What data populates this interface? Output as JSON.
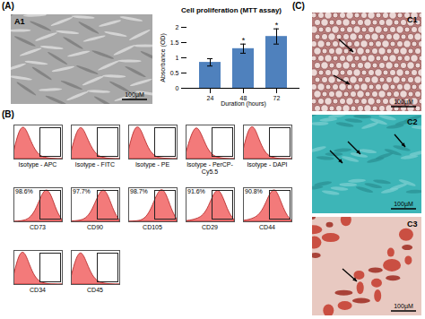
{
  "figure": {
    "panels": {
      "A": {
        "label": "(A)",
        "A1": {
          "label": "A1",
          "scale_bar": "100µM"
        }
      },
      "B": {
        "label": "(B)",
        "histograms": {
          "ylim": [
            0,
            100
          ],
          "tick_labels": false,
          "color": "#f26b6b",
          "rows": [
            [
              {
                "name": "Isotype - APC",
                "values": [
                  20,
                  85,
                  100,
                  60,
                  25,
                  8,
                  3,
                  1,
                  0,
                  0
                ]
              },
              {
                "name": "Isotype - FITC",
                "values": [
                  18,
                  80,
                  100,
                  62,
                  28,
                  9,
                  3,
                  1,
                  0,
                  0
                ]
              },
              {
                "name": "Isotype - PE",
                "values": [
                  22,
                  88,
                  100,
                  58,
                  22,
                  7,
                  2,
                  1,
                  0,
                  0
                ]
              },
              {
                "name": "Isotype - PerCP-Cy5.5",
                "values": [
                  15,
                  70,
                  100,
                  70,
                  30,
                  10,
                  4,
                  1,
                  0,
                  0
                ]
              },
              {
                "name": "Isotype - DAPI",
                "values": [
                  25,
                  90,
                  100,
                  55,
                  20,
                  6,
                  2,
                  0,
                  0,
                  0
                ]
              }
            ],
            [
              {
                "name": "CD73",
                "gate_label": "98.6%",
                "values": [
                  0,
                  1,
                  3,
                  10,
                  30,
                  70,
                  100,
                  80,
                  30,
                  5
                ]
              },
              {
                "name": "CD90",
                "gate_label": "97.7%",
                "values": [
                  1,
                  2,
                  4,
                  12,
                  35,
                  75,
                  100,
                  75,
                  28,
                  4
                ]
              },
              {
                "name": "CD105",
                "gate_label": "98.7%",
                "values": [
                  0,
                  1,
                  2,
                  8,
                  28,
                  68,
                  100,
                  85,
                  35,
                  6
                ]
              },
              {
                "name": "CD29",
                "gate_label": "91.6%",
                "values": [
                  2,
                  4,
                  8,
                  15,
                  35,
                  75,
                  100,
                  70,
                  25,
                  5
                ]
              },
              {
                "name": "CD44",
                "gate_label": "90.8%",
                "values": [
                  3,
                  5,
                  10,
                  20,
                  45,
                  85,
                  100,
                  60,
                  20,
                  3
                ]
              }
            ],
            [
              {
                "name": "CD34",
                "values": [
                  25,
                  90,
                  100,
                  55,
                  20,
                  6,
                  2,
                  0,
                  0,
                  0
                ]
              },
              {
                "name": "CD45",
                "values": [
                  20,
                  82,
                  100,
                  60,
                  24,
                  8,
                  3,
                  1,
                  0,
                  0
                ]
              }
            ]
          ]
        }
      },
      "C": {
        "label": "(C)",
        "images": [
          {
            "label": "C1",
            "scale_bar": "100µM"
          },
          {
            "label": "C2",
            "scale_bar": "100µM"
          },
          {
            "label": "C3",
            "scale_bar": "100µM"
          }
        ]
      }
    }
  },
  "chart_data": {
    "type": "bar",
    "title": "Cell proliferation (MTT assay)",
    "x_label": "Duration (hours)",
    "y_label": "Absorbance (OD)",
    "categories": [
      "24",
      "48",
      "72"
    ],
    "values": [
      0.85,
      1.3,
      1.7
    ],
    "errors": [
      0.12,
      0.15,
      0.25
    ],
    "significance": [
      null,
      "*",
      "*"
    ],
    "color": "#4f81bd",
    "ylim": [
      0,
      2
    ],
    "yticks": [
      0,
      0.5,
      1,
      1.5,
      2
    ],
    "grid": false
  }
}
